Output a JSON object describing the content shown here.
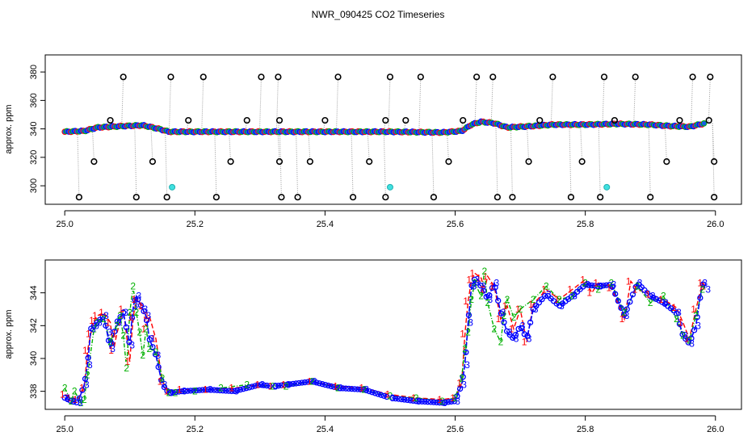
{
  "title": "NWR_090425  CO2 Timeseries",
  "colors": {
    "series1": "#ff0000",
    "series2": "#00b000",
    "series3": "#0000ff",
    "fill": "#1a5ce6",
    "outlier": "#000000",
    "flag": "#40e0e0",
    "spike": "#9a9a9a"
  },
  "chart_data": [
    {
      "type": "scatter",
      "ylabel": "approx. ppm",
      "xlim": [
        24.97,
        26.04
      ],
      "ylim": [
        287,
        392
      ],
      "xticks": [
        "25.0",
        "25.2",
        "25.4",
        "25.6",
        "25.8",
        "26.0"
      ],
      "yticks": [
        "300",
        "320",
        "340",
        "360",
        "380"
      ],
      "baseline": [
        [
          25.0,
          338
        ],
        [
          25.03,
          338.5
        ],
        [
          25.05,
          341
        ],
        [
          25.09,
          342
        ],
        [
          25.12,
          342.5
        ],
        [
          25.145,
          340
        ],
        [
          25.16,
          338
        ],
        [
          25.2,
          338
        ],
        [
          25.3,
          338
        ],
        [
          25.4,
          338
        ],
        [
          25.5,
          338
        ],
        [
          25.58,
          337.5
        ],
        [
          25.61,
          338.5
        ],
        [
          25.625,
          343
        ],
        [
          25.64,
          345
        ],
        [
          25.66,
          344
        ],
        [
          25.68,
          341
        ],
        [
          25.72,
          342
        ],
        [
          25.75,
          343
        ],
        [
          25.8,
          343
        ],
        [
          25.85,
          343.5
        ],
        [
          25.9,
          343
        ],
        [
          25.93,
          342
        ],
        [
          25.96,
          341.5
        ],
        [
          25.985,
          344
        ]
      ],
      "outliers_high": [
        25.09,
        25.163,
        25.213,
        25.302,
        25.328,
        25.42,
        25.5,
        25.547,
        25.633,
        25.658,
        25.75,
        25.829,
        25.877,
        25.965,
        25.992
      ],
      "outliers_low": [
        25.022,
        25.11,
        25.157,
        25.233,
        25.333,
        25.358,
        25.443,
        25.493,
        25.567,
        25.665,
        25.688,
        25.778,
        25.823,
        25.9,
        25.998
      ],
      "outliers_mid": [
        [
          25.045,
          317
        ],
        [
          25.135,
          317
        ],
        [
          25.255,
          317
        ],
        [
          25.33,
          317
        ],
        [
          25.377,
          317
        ],
        [
          25.468,
          317
        ],
        [
          25.59,
          317
        ],
        [
          25.713,
          317
        ],
        [
          25.795,
          317
        ],
        [
          25.925,
          317
        ],
        [
          25.998,
          317
        ],
        [
          25.07,
          346
        ],
        [
          25.19,
          346
        ],
        [
          25.28,
          346
        ],
        [
          25.33,
          346
        ],
        [
          25.4,
          346
        ],
        [
          25.493,
          346
        ],
        [
          25.524,
          346
        ],
        [
          25.612,
          346
        ],
        [
          25.73,
          346
        ],
        [
          25.845,
          346
        ],
        [
          25.945,
          346
        ],
        [
          25.99,
          346
        ]
      ],
      "flagged": [
        [
          25.165,
          299
        ],
        [
          25.5,
          299
        ],
        [
          25.833,
          299
        ]
      ]
    },
    {
      "type": "line",
      "ylabel": "approx. ppm",
      "xlim": [
        24.97,
        26.04
      ],
      "ylim": [
        336.9,
        346.0
      ],
      "xticks": [
        "25.0",
        "25.2",
        "25.4",
        "25.6",
        "25.8",
        "26.0"
      ],
      "yticks": [
        "338",
        "340",
        "342",
        "344"
      ],
      "gaps": [
        25.32,
        25.5
      ],
      "series": [
        {
          "label": "1",
          "x": [
            25.0,
            25.01,
            25.02,
            25.03,
            25.035,
            25.04,
            25.045,
            25.05,
            25.06,
            25.07,
            25.075,
            25.08,
            25.09,
            25.1,
            25.105,
            25.11,
            25.12,
            25.125,
            25.13,
            25.14,
            25.15,
            25.16,
            25.18,
            25.22,
            25.26,
            25.3,
            25.32,
            25.34,
            25.38,
            25.42,
            25.46,
            25.5,
            25.54,
            25.58,
            25.6,
            25.61,
            25.615,
            25.62,
            25.625,
            25.63,
            25.64,
            25.645,
            25.65,
            25.66,
            25.67,
            25.68,
            25.69,
            25.7,
            25.71,
            25.72,
            25.74,
            25.76,
            25.78,
            25.8,
            25.81,
            25.82,
            25.84,
            25.86,
            25.87,
            25.88,
            25.9,
            25.92,
            25.94,
            25.95,
            25.96,
            25.97,
            25.98,
            25.985
          ],
          "y": [
            337.8,
            337.6,
            337.5,
            338.2,
            340.5,
            341.5,
            342.3,
            342.6,
            342.8,
            342.2,
            340.5,
            341.5,
            343.0,
            339.8,
            342.5,
            343.6,
            343.2,
            341.8,
            342.6,
            341.2,
            338.6,
            338.0,
            338.1,
            338.1,
            338.2,
            338.4,
            338.3,
            338.4,
            338.6,
            338.3,
            338.2,
            337.8,
            337.6,
            337.5,
            337.6,
            338.5,
            341.5,
            343.5,
            344.8,
            345.2,
            344.9,
            344.2,
            345.0,
            344.4,
            342.4,
            343.2,
            341.8,
            343.0,
            341.0,
            343.3,
            344.2,
            343.6,
            344.2,
            344.8,
            344.0,
            344.6,
            344.3,
            342.4,
            344.7,
            344.2,
            343.9,
            343.6,
            343.1,
            342.2,
            341.2,
            343.0,
            344.6,
            344.4
          ]
        },
        {
          "label": "2",
          "x": [
            25.0,
            25.01,
            25.015,
            25.025,
            25.03,
            25.035,
            25.045,
            25.05,
            25.06,
            25.07,
            25.08,
            25.085,
            25.09,
            25.095,
            25.1,
            25.105,
            25.11,
            25.115,
            25.12,
            25.125,
            25.13,
            25.14,
            25.15,
            25.16,
            25.17,
            25.2,
            25.24,
            25.28,
            25.32,
            25.34,
            25.38,
            25.42,
            25.46,
            25.5,
            25.54,
            25.58,
            25.6,
            25.61,
            25.615,
            25.62,
            25.625,
            25.63,
            25.64,
            25.645,
            25.65,
            25.66,
            25.67,
            25.675,
            25.68,
            25.69,
            25.7,
            25.72,
            25.74,
            25.76,
            25.78,
            25.8,
            25.82,
            25.84,
            25.86,
            25.88,
            25.9,
            25.92,
            25.94,
            25.95,
            25.96,
            25.97,
            25.98
          ],
          "y": [
            338.2,
            337.4,
            338.0,
            337.3,
            337.5,
            339.0,
            341.8,
            342.2,
            342.4,
            341.0,
            342.0,
            342.6,
            341.4,
            339.4,
            342.8,
            344.4,
            342.8,
            341.6,
            340.2,
            341.8,
            340.6,
            340.4,
            338.8,
            337.9,
            337.9,
            338.0,
            338.2,
            338.4,
            338.3,
            338.3,
            338.6,
            338.2,
            338.1,
            337.7,
            337.6,
            337.4,
            337.6,
            338.8,
            340.6,
            341.6,
            343.6,
            344.6,
            343.8,
            345.3,
            343.4,
            341.8,
            341.0,
            342.6,
            343.6,
            342.5,
            343.0,
            343.6,
            344.4,
            343.6,
            343.8,
            344.6,
            344.2,
            344.6,
            342.8,
            344.4,
            343.4,
            343.8,
            342.4,
            341.4,
            341.1,
            342.6,
            344.2
          ]
        },
        {
          "label": "3",
          "x": [
            25.0,
            25.01,
            25.02,
            25.03,
            25.035,
            25.04,
            25.045,
            25.05,
            25.06,
            25.065,
            25.07,
            25.08,
            25.09,
            25.1,
            25.105,
            25.11,
            25.12,
            25.125,
            25.13,
            25.14,
            25.15,
            25.16,
            25.18,
            25.22,
            25.26,
            25.3,
            25.32,
            25.34,
            25.38,
            25.42,
            25.46,
            25.5,
            25.54,
            25.58,
            25.6,
            25.61,
            25.615,
            25.62,
            25.625,
            25.63,
            25.64,
            25.65,
            25.66,
            25.67,
            25.68,
            25.69,
            25.7,
            25.71,
            25.72,
            25.74,
            25.76,
            25.78,
            25.8,
            25.82,
            25.84,
            25.86,
            25.88,
            25.9,
            25.92,
            25.94,
            25.95,
            25.96,
            25.97,
            25.98,
            25.985
          ],
          "y": [
            337.6,
            337.4,
            337.3,
            338.4,
            339.6,
            341.8,
            342.0,
            342.2,
            342.6,
            341.6,
            340.6,
            342.2,
            342.8,
            340.8,
            343.2,
            343.8,
            343.0,
            342.6,
            341.2,
            340.2,
            338.4,
            337.9,
            338.0,
            338.1,
            338.0,
            338.4,
            338.3,
            338.4,
            338.6,
            338.2,
            338.1,
            337.6,
            337.4,
            337.3,
            337.4,
            338.4,
            339.6,
            342.2,
            344.4,
            344.8,
            344.4,
            343.6,
            344.6,
            342.8,
            341.6,
            341.2,
            342.0,
            341.2,
            343.0,
            343.9,
            343.2,
            343.8,
            344.5,
            344.4,
            344.5,
            342.6,
            344.6,
            343.8,
            343.4,
            342.8,
            341.4,
            340.9,
            342.0,
            344.6,
            344.2
          ]
        }
      ]
    }
  ]
}
